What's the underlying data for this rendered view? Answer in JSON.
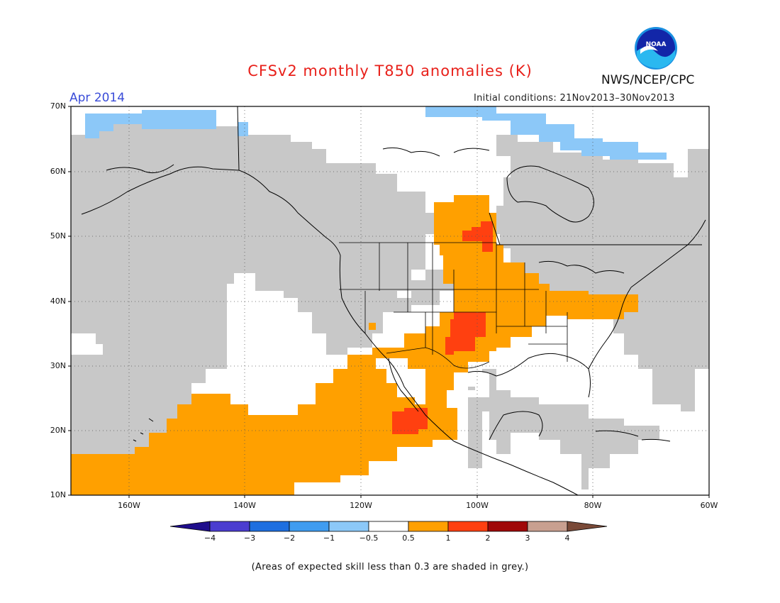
{
  "header": {
    "title": "CFSv2 monthly T850 anomalies (K)",
    "month": "Apr 2014",
    "initial_conditions": "Initial conditions: 21Nov2013–30Nov2013",
    "agency": "NWS/NCEP/CPC",
    "logo_text": "NOAA"
  },
  "map": {
    "lat_labels": [
      "70N",
      "60N",
      "50N",
      "40N",
      "30N",
      "20N",
      "10N"
    ],
    "lon_labels": [
      "160W",
      "140W",
      "120W",
      "100W",
      "80W",
      "60W"
    ]
  },
  "colorbar": {
    "labels": [
      "−4",
      "−3",
      "−2",
      "−1",
      "−0.5",
      "0.5",
      "1",
      "2",
      "3",
      "4"
    ],
    "colors": [
      "#1f0e8c",
      "#4b3dd0",
      "#1e6fe0",
      "#3f9cf0",
      "#8cc8f8",
      "#ffffff",
      "#ffa000",
      "#ff4010",
      "#a00808",
      "#c8a090",
      "#7a4a38"
    ]
  },
  "footnote": "(Areas of expected skill less than 0.3 are shaded in grey.)"
}
